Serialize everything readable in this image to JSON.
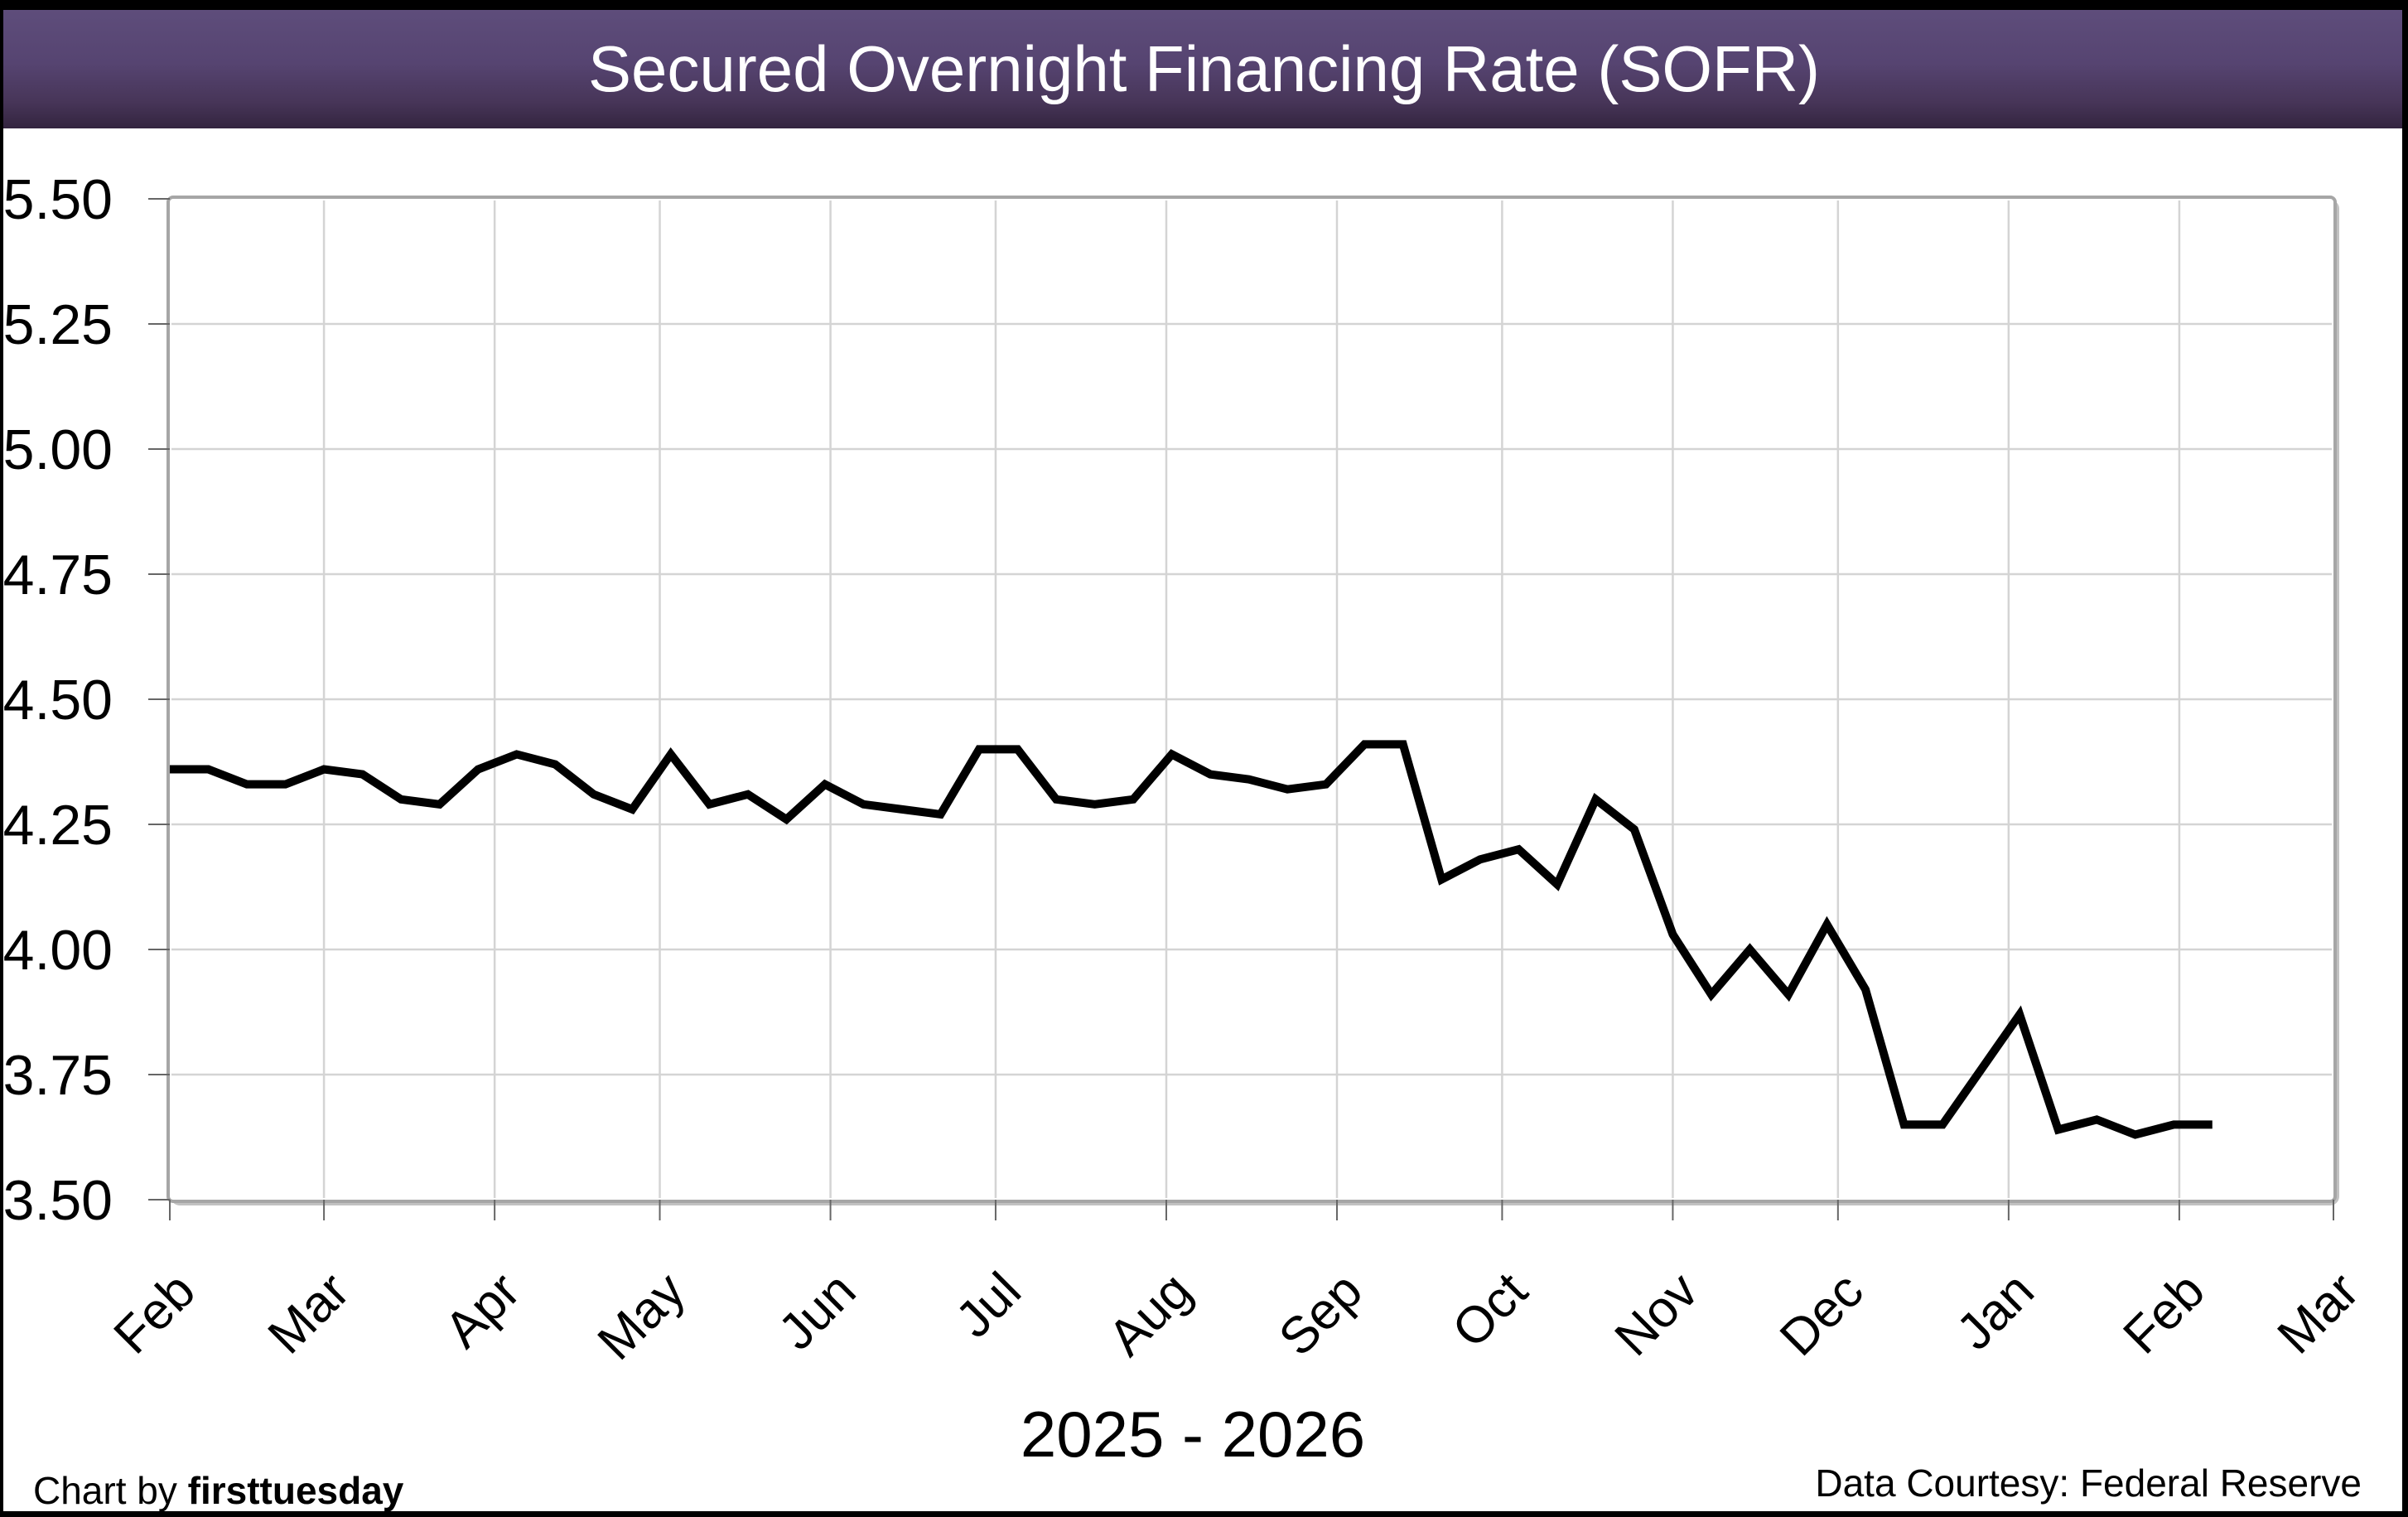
{
  "header": {
    "title": "Secured Overnight Financing Rate (SOFR)"
  },
  "footer": {
    "credit_prefix": "Chart by ",
    "credit_brand": "firsttuesday",
    "data_courtesy": "Data Courtesy: Federal Reserve"
  },
  "chart_data": {
    "type": "line",
    "title": "Secured Overnight Financing Rate (SOFR)",
    "xlabel": "2025 - 2026",
    "ylabel": "",
    "x_tick_labels": [
      "Feb",
      "Mar",
      "Apr",
      "May",
      "Jun",
      "Jul",
      "Aug",
      "Sep",
      "Oct",
      "Nov",
      "Dec",
      "Jan",
      "Feb",
      "Mar"
    ],
    "month_intervals_days": [
      28,
      31,
      30,
      31,
      30,
      31,
      31,
      30,
      31,
      30,
      31,
      31,
      28
    ],
    "y_tick_labels": [
      "5.50",
      "5.25",
      "5.00",
      "4.75",
      "4.50",
      "4.25",
      "4.00",
      "3.75",
      "3.50"
    ],
    "ylim": [
      3.5,
      5.5
    ],
    "y_step": 0.25,
    "grid": true,
    "legend_position": "none",
    "series": [
      {
        "name": "SOFR",
        "cadence": "weekly",
        "start_day_offset": 0,
        "interval_days": 7,
        "values": [
          4.36,
          4.36,
          4.33,
          4.33,
          4.36,
          4.35,
          4.3,
          4.29,
          4.36,
          4.39,
          4.37,
          4.31,
          4.28,
          4.39,
          4.29,
          4.31,
          4.26,
          4.33,
          4.29,
          4.28,
          4.27,
          4.4,
          4.4,
          4.3,
          4.29,
          4.3,
          4.39,
          4.35,
          4.34,
          4.32,
          4.33,
          4.41,
          4.41,
          4.14,
          4.18,
          4.2,
          4.13,
          4.3,
          4.24,
          4.03,
          3.91,
          4.0,
          3.91,
          4.05,
          3.92,
          3.65,
          3.65,
          3.76,
          3.87,
          3.64,
          3.66,
          3.63,
          3.65,
          3.65
        ]
      }
    ],
    "colors": {
      "line": "#000000",
      "gridline": "#d4d4d4",
      "plot_border": "#a6a6a6",
      "plot_shadow": "#c2c2c2",
      "tick": "#666666",
      "header_gradient_top": "#5e4d7b",
      "header_gradient_bottom": "#33243f",
      "title_text": "#ffffff",
      "body_text": "#000000"
    }
  }
}
